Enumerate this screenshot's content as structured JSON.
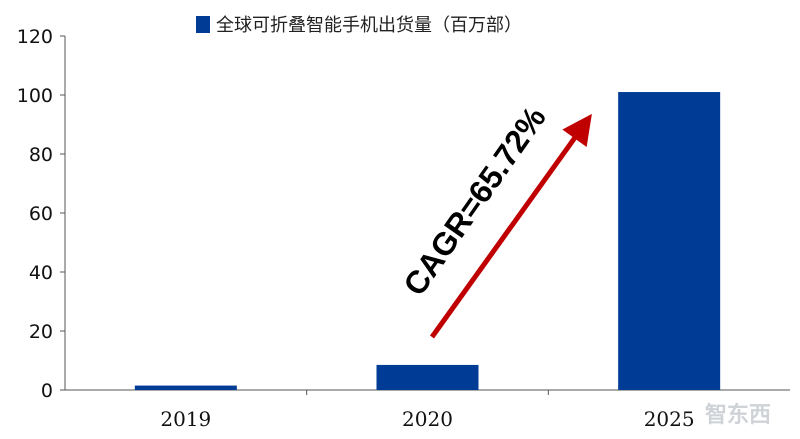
{
  "chart_data": {
    "type": "bar",
    "categories": [
      "2019",
      "2020",
      "2025"
    ],
    "series": [
      {
        "name": "全球可折叠智能手机出货量（百万部）",
        "values": [
          1.5,
          8.5,
          101
        ],
        "color": "#003b96"
      }
    ],
    "ylim": [
      0,
      120
    ],
    "yticks": [
      0,
      20,
      40,
      60,
      80,
      100,
      120
    ],
    "grid": false,
    "legend_position": "top-center",
    "annotation": {
      "text": "CAGR=65.72%",
      "color": "#c00000"
    }
  },
  "watermark": "智东西"
}
